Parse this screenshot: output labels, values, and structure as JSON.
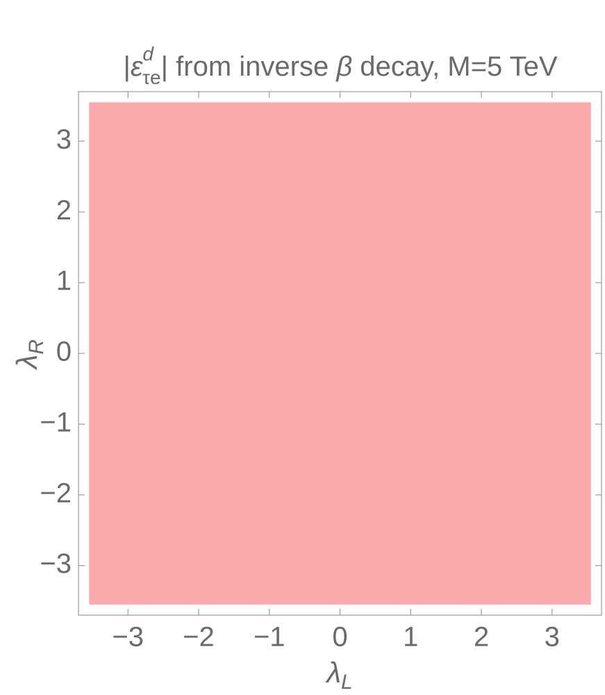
{
  "chart_data": {
    "type": "region",
    "title": [
      "|",
      "ε",
      "d",
      "τe",
      "| from inverse ",
      "β",
      " decay, M=5 TeV"
    ],
    "x_label": {
      "text": "λ",
      "sub": "L"
    },
    "y_label": {
      "text": "λ",
      "sub": "R"
    },
    "regions": [
      {
        "xrange": [
          -3.55,
          3.55
        ],
        "yrange": [
          -3.55,
          3.55
        ],
        "color": "#fca9ad"
      }
    ],
    "xlim": [
      -3.7,
      3.7
    ],
    "ylim": [
      -3.7,
      3.7
    ],
    "xticks": [
      {
        "value": -3,
        "label": "−3"
      },
      {
        "value": -2,
        "label": "−2"
      },
      {
        "value": -1,
        "label": "−1"
      },
      0,
      1,
      2,
      3
    ],
    "yticks": [
      {
        "value": -3,
        "label": "−3"
      },
      {
        "value": -2,
        "label": "−2"
      },
      {
        "value": -1,
        "label": "−1"
      },
      0,
      1,
      2,
      3
    ]
  }
}
